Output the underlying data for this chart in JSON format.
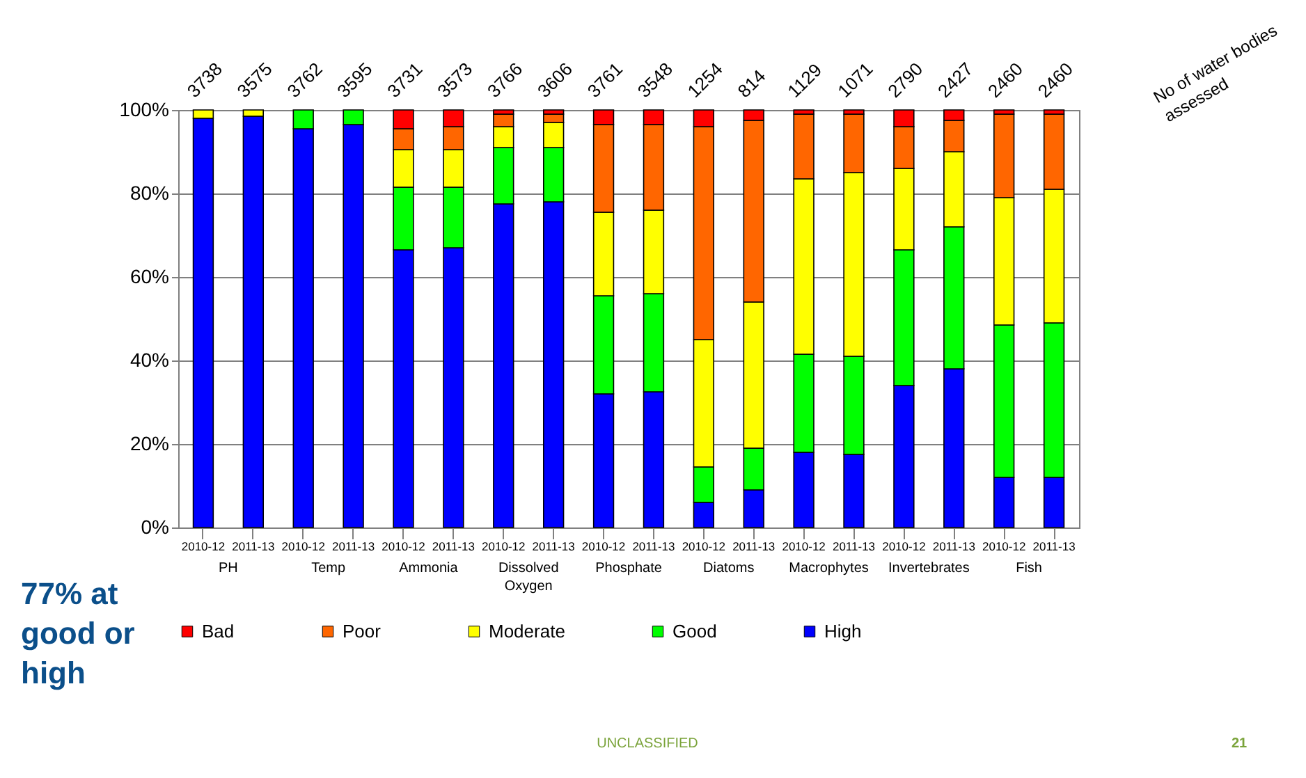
{
  "chart_data": {
    "type": "bar",
    "stacked": true,
    "categories": [
      "2010-12",
      "2011-13",
      "2010-12",
      "2011-13",
      "2010-12",
      "2011-13",
      "2010-12",
      "2011-13",
      "2010-12",
      "2011-13",
      "2010-12",
      "2011-13",
      "2010-12",
      "2011-13",
      "2010-12",
      "2011-13",
      "2010-12",
      "2011-13"
    ],
    "series": [
      {
        "name": "High",
        "color": "#0000ff",
        "values": [
          98,
          98.5,
          95.5,
          96.5,
          66.5,
          67,
          77.5,
          78,
          32,
          32.5,
          6,
          9,
          18,
          17.5,
          34,
          38,
          12,
          12
        ]
      },
      {
        "name": "Good",
        "color": "#00ff00",
        "values": [
          null,
          null,
          4.5,
          3.5,
          15,
          14.5,
          13.5,
          13,
          23.5,
          23.5,
          8.5,
          10,
          23.5,
          23.5,
          32.5,
          34,
          36.5,
          37
        ]
      },
      {
        "name": "Moderate",
        "color": "#ffff00",
        "values": [
          2,
          1.5,
          null,
          null,
          9,
          9,
          5,
          6,
          20,
          20,
          30.5,
          35,
          42,
          44,
          19.5,
          18,
          30.5,
          32
        ]
      },
      {
        "name": "Poor",
        "color": "#ff6600",
        "values": [
          null,
          null,
          null,
          null,
          5,
          5.5,
          3,
          2,
          21,
          20.5,
          51,
          43.5,
          15.5,
          14,
          10,
          7.5,
          20,
          18
        ]
      },
      {
        "name": "Bad",
        "color": "#ff0000",
        "values": [
          null,
          null,
          null,
          null,
          4.5,
          4,
          1,
          1,
          3.5,
          3.5,
          4,
          2.5,
          1,
          1,
          4,
          2.5,
          1,
          1
        ]
      }
    ],
    "ylim": [
      0,
      100
    ],
    "yticks": [
      {
        "value": 0,
        "label": "0%"
      },
      {
        "value": 20,
        "label": "20%"
      },
      {
        "value": 40,
        "label": "40%"
      },
      {
        "value": 60,
        "label": "60%"
      },
      {
        "value": 80,
        "label": "80%"
      },
      {
        "value": 100,
        "label": "100%"
      }
    ],
    "grid": "y",
    "legend": "bottom",
    "annotations": [
      "PH",
      "Temp",
      "Ammonia",
      "Dissolved Oxygen",
      "Phosphate",
      "Diatoms",
      "Macrophytes",
      "Invertebrates",
      "Fish",
      "3738",
      "3575",
      "3762",
      "3595",
      "3731",
      "3573",
      "3766",
      "3606",
      "3761",
      "3548",
      "1254",
      "814",
      "1129",
      "1071",
      "2790",
      "2427",
      "2460",
      "2460",
      "No of water bodies assessed",
      "77% at good or high",
      "UNCLASSIFIED",
      "21"
    ]
  }
}
